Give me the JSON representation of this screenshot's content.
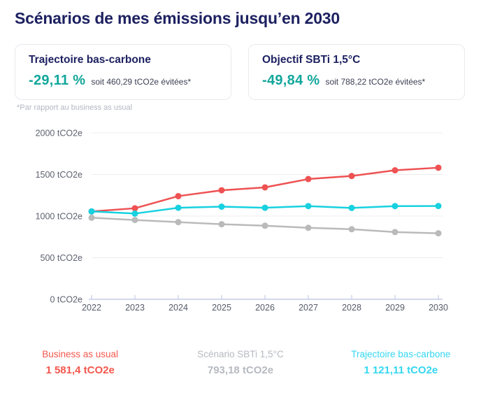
{
  "page": {
    "title": "Scénarios de mes émissions jusqu’en 2030"
  },
  "cards": [
    {
      "title": "Trajectoire bas-carbone",
      "percent": "-29,11 %",
      "detail": "soit 460,29 tCO2e évitées*",
      "accent_color": "#12a79c"
    },
    {
      "title": "Objectif SBTi 1,5°C",
      "percent": "-49,84 %",
      "detail": "soit 788,22 tCO2e évitées*",
      "accent_color": "#12a79c"
    }
  ],
  "footnote": "*Par rapport au business as usual",
  "chart_data": {
    "type": "line",
    "x": [
      2022,
      2023,
      2024,
      2025,
      2026,
      2027,
      2028,
      2029,
      2030
    ],
    "series": [
      {
        "name": "Scénario SBTi 1,5°C",
        "color": "#bababa",
        "values": [
          980,
          953,
          927,
          902,
          884,
          859,
          842,
          808,
          793.18
        ]
      },
      {
        "name": "Business as usual",
        "color": "#ee5253",
        "values": [
          1056,
          1094,
          1240,
          1310,
          1345,
          1445,
          1482,
          1550,
          1581.4
        ]
      },
      {
        "name": "Trajectoire bas-carbone",
        "color": "#17d1e0",
        "values": [
          1056,
          1030,
          1100,
          1113,
          1100,
          1120,
          1098,
          1120,
          1121.11
        ]
      }
    ],
    "title": "",
    "xlabel": "",
    "ylabel": "tCO2e",
    "ylim": [
      0,
      2000
    ],
    "yticks": [
      0,
      500,
      1000,
      1500,
      2000
    ],
    "ytick_labels": [
      "0 tCO2e",
      "500 tCO2e",
      "1000 tCO2e",
      "1500 tCO2e",
      "2000 tCO2e"
    ],
    "grid": true,
    "legend_position": "bottom",
    "axis_color": "#c6cce7",
    "grid_color": "#ededed",
    "tick_label_color": "#5d6270"
  },
  "legend": [
    {
      "label": "Business as usual",
      "value": "1 581,4 tCO2e",
      "color": "#f4574d"
    },
    {
      "label": "Scénario SBTi 1,5°C",
      "value": "793,18 tCO2e",
      "color": "#b6bac0"
    },
    {
      "label": "Trajectoire bas-carbone",
      "value": "1 121,11 tCO2e",
      "color": "#34d7f1"
    }
  ]
}
